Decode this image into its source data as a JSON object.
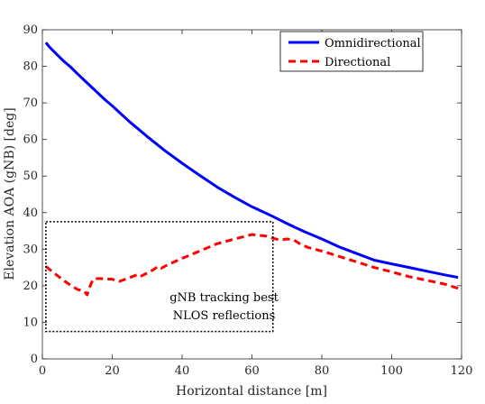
{
  "chart_data": {
    "type": "line",
    "xlabel": "Horizontal distance [m]",
    "ylabel": "Elevation AOA (gNB) [deg]",
    "xlim": [
      0,
      120
    ],
    "ylim": [
      0,
      90
    ],
    "x_ticks": [
      0,
      20,
      40,
      60,
      80,
      100,
      120
    ],
    "y_ticks": [
      0,
      10,
      20,
      30,
      40,
      50,
      60,
      70,
      80,
      90
    ],
    "grid": false,
    "legend_position": "top-right",
    "series": [
      {
        "name": "Omnidirectional",
        "color": "#0000FF",
        "style": "solid",
        "x": [
          1,
          2,
          4,
          6,
          8,
          10,
          12,
          15,
          18,
          20,
          25,
          30,
          35,
          40,
          45,
          50,
          55,
          60,
          65,
          70,
          75,
          80,
          85,
          90,
          95,
          100,
          105,
          110,
          115,
          119
        ],
        "y": [
          86.5,
          85.3,
          83.4,
          81.5,
          79.9,
          78.0,
          76.2,
          73.5,
          70.8,
          69.2,
          64.8,
          60.8,
          57.0,
          53.5,
          50.2,
          47.0,
          44.2,
          41.6,
          39.4,
          37.0,
          34.8,
          32.8,
          30.6,
          28.8,
          27.0,
          26.0,
          25.0,
          24.0,
          23.0,
          22.3
        ]
      },
      {
        "name": "Directional",
        "color": "#FF0000",
        "style": "dashed",
        "x": [
          1,
          2,
          4,
          6,
          8,
          10,
          12,
          12.8,
          13.5,
          14.5,
          16,
          20,
          22,
          25,
          27,
          28,
          30,
          32,
          33,
          34,
          36,
          40,
          45,
          50,
          55,
          58,
          60,
          62,
          64,
          66,
          68,
          70,
          72,
          74,
          76,
          80,
          85,
          90,
          95,
          100,
          105,
          110,
          115,
          119
        ],
        "y": [
          25.3,
          24.5,
          23.0,
          21.5,
          20.2,
          19.0,
          18.5,
          17.5,
          19.5,
          21.8,
          22.0,
          21.8,
          21.2,
          22.2,
          23.0,
          22.5,
          23.5,
          24.5,
          25.3,
          24.8,
          25.8,
          27.5,
          29.5,
          31.5,
          32.8,
          33.5,
          34.0,
          33.8,
          33.6,
          33.0,
          32.5,
          32.8,
          32.5,
          31.3,
          30.5,
          29.5,
          28.0,
          26.5,
          25.0,
          23.8,
          22.5,
          21.5,
          20.5,
          19.3
        ]
      }
    ],
    "annotation": {
      "lines": [
        "gNB tracking best",
        "NLOS reflections"
      ],
      "box_x": [
        1,
        66
      ],
      "box_y": [
        7.5,
        37.5
      ]
    }
  }
}
